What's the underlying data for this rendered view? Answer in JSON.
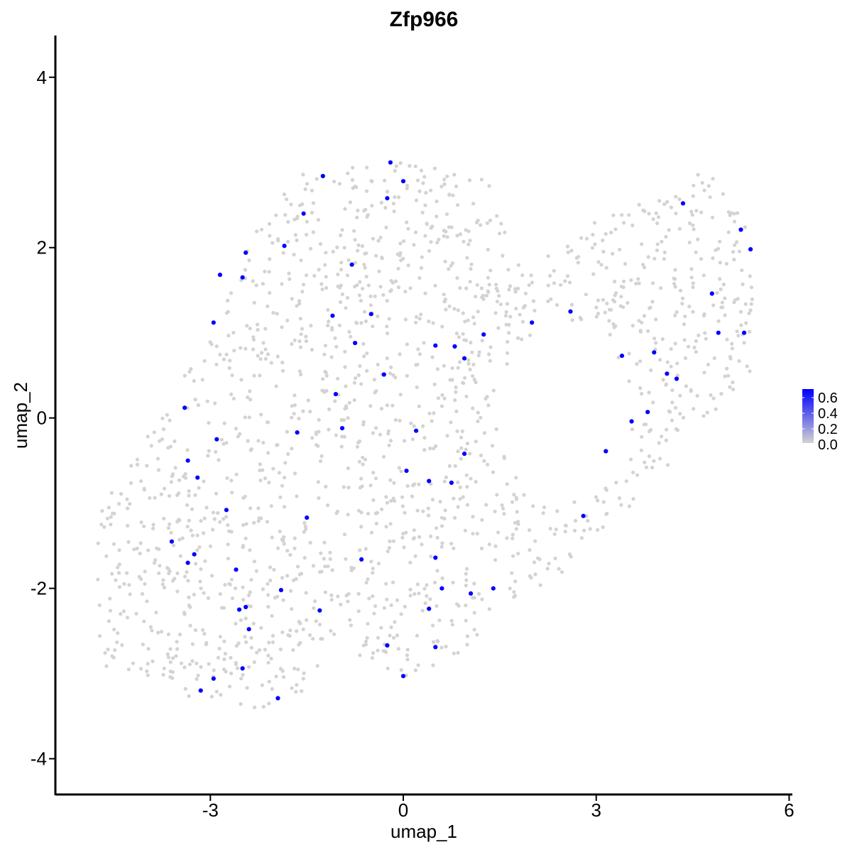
{
  "chart_data": {
    "type": "scatter",
    "title": "Zfp966",
    "xlabel": "umap_1",
    "ylabel": "umap_2",
    "xlim": [
      -5.41,
      6.05
    ],
    "ylim": [
      -4.42,
      4.49
    ],
    "x_ticks": [
      -3,
      0,
      3,
      6
    ],
    "x_tick_labels": [
      "-3",
      "0",
      "3",
      "6"
    ],
    "y_ticks": [
      -4,
      -2,
      0,
      2,
      4
    ],
    "y_tick_labels": [
      "-4",
      "-2",
      "0",
      "2",
      "4"
    ],
    "grid": false,
    "legend": {
      "placement": "right",
      "type": "colorbar",
      "range": [
        0,
        0.65
      ],
      "labels": [
        "0.6",
        "0.4",
        "0.2",
        "0.0"
      ],
      "low_color": "#d3d3d3",
      "high_color": "#0000ff"
    },
    "background_cells": {
      "color": "#d3d3d3",
      "approx_count": 1650,
      "note_region": "cells spread over umap_1 -4.7..5.4, umap_2 -3.5..3.2"
    },
    "series": [
      {
        "values": [
          [
            -0.2,
            3.0
          ],
          [
            0.0,
            2.78
          ],
          [
            -1.25,
            2.84
          ],
          [
            -0.25,
            2.58
          ],
          [
            -1.55,
            2.4
          ],
          [
            -2.45,
            1.94
          ],
          [
            -1.85,
            2.02
          ],
          [
            -2.85,
            1.68
          ],
          [
            -2.5,
            1.65
          ],
          [
            -0.8,
            1.8
          ],
          [
            -2.95,
            1.12
          ],
          [
            -1.1,
            1.2
          ],
          [
            -0.5,
            1.22
          ],
          [
            -0.75,
            0.88
          ],
          [
            0.5,
            0.85
          ],
          [
            0.8,
            0.84
          ],
          [
            0.95,
            0.7
          ],
          [
            1.25,
            0.98
          ],
          [
            -0.3,
            0.51
          ],
          [
            -3.4,
            0.12
          ],
          [
            -1.05,
            0.28
          ],
          [
            -0.95,
            -0.12
          ],
          [
            -1.65,
            -0.17
          ],
          [
            0.2,
            -0.15
          ],
          [
            -2.9,
            -0.25
          ],
          [
            -3.35,
            -0.5
          ],
          [
            -3.2,
            -0.7
          ],
          [
            0.95,
            -0.42
          ],
          [
            0.05,
            -0.62
          ],
          [
            0.4,
            -0.74
          ],
          [
            0.75,
            -0.76
          ],
          [
            -2.75,
            -1.08
          ],
          [
            -1.5,
            -1.17
          ],
          [
            -3.6,
            -1.45
          ],
          [
            -3.25,
            -1.6
          ],
          [
            -3.35,
            -1.7
          ],
          [
            -2.6,
            -1.78
          ],
          [
            -0.65,
            -1.66
          ],
          [
            0.5,
            -1.64
          ],
          [
            -1.9,
            -2.02
          ],
          [
            0.6,
            -2.0
          ],
          [
            1.05,
            -2.06
          ],
          [
            1.4,
            -2.0
          ],
          [
            -2.45,
            -2.22
          ],
          [
            -2.55,
            -2.25
          ],
          [
            -1.3,
            -2.26
          ],
          [
            0.4,
            -2.24
          ],
          [
            -2.4,
            -2.48
          ],
          [
            -0.25,
            -2.67
          ],
          [
            0.5,
            -2.69
          ],
          [
            -2.5,
            -2.94
          ],
          [
            -2.95,
            -3.06
          ],
          [
            0.0,
            -3.03
          ],
          [
            -3.15,
            -3.2
          ],
          [
            -1.95,
            -3.29
          ],
          [
            2.0,
            1.12
          ],
          [
            2.6,
            1.25
          ],
          [
            3.4,
            0.73
          ],
          [
            3.9,
            0.77
          ],
          [
            4.1,
            0.52
          ],
          [
            4.25,
            0.46
          ],
          [
            3.8,
            0.07
          ],
          [
            3.55,
            -0.04
          ],
          [
            3.15,
            -0.39
          ],
          [
            2.8,
            -1.15
          ],
          [
            4.35,
            2.52
          ],
          [
            4.8,
            1.46
          ],
          [
            4.9,
            1.0
          ],
          [
            5.25,
            2.21
          ],
          [
            5.4,
            1.98
          ],
          [
            5.3,
            1.0
          ]
        ],
        "color": "#0000ff",
        "value_level": "high"
      }
    ]
  }
}
